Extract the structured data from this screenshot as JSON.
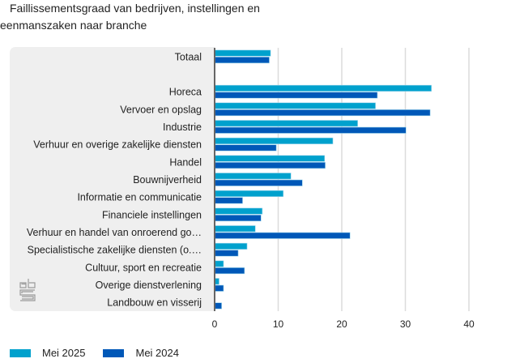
{
  "chart_data": {
    "type": "bar",
    "orientation": "horizontal",
    "title": "Faillissementsgraad van bedrijven, instellingen en eenmanszaken naar branche",
    "title_lines": [
      "Faillissementsgraad van bedrijven, instellingen en",
      "eenmanszaken naar branche"
    ],
    "categories": [
      "Totaal",
      "",
      "Horeca",
      "Vervoer en opslag",
      "Industrie",
      "Verhuur en overige zakelijke diensten",
      "Handel",
      "Bouwnijverheid",
      "Informatie en communicatie",
      "Financiele instellingen",
      "Verhuur en handel van onroerend go…",
      "Specialistische zakelijke diensten (o.…",
      "Cultuur, sport en recreatie",
      "Overige dienstverlening",
      "Landbouw en visserij"
    ],
    "series": [
      {
        "name": "Mei 2025",
        "color": "#00a1cd",
        "values": [
          8.8,
          null,
          34.1,
          25.3,
          22.5,
          18.6,
          17.3,
          12.0,
          10.8,
          7.5,
          6.4,
          5.1,
          1.4,
          0.7,
          0
        ]
      },
      {
        "name": "Mei 2024",
        "color": "#0058b8",
        "values": [
          8.6,
          null,
          25.6,
          33.9,
          30.1,
          9.7,
          17.4,
          13.8,
          4.4,
          7.3,
          21.3,
          3.7,
          4.7,
          1.4,
          1.1
        ]
      }
    ],
    "xlim": [
      0,
      40
    ],
    "xticks": [
      "0",
      "10",
      "20",
      "30",
      "40"
    ],
    "xlabel": "",
    "ylabel": "",
    "grid": true,
    "legend_position": "bottom-left"
  },
  "logo": {
    "text": "cbs"
  }
}
